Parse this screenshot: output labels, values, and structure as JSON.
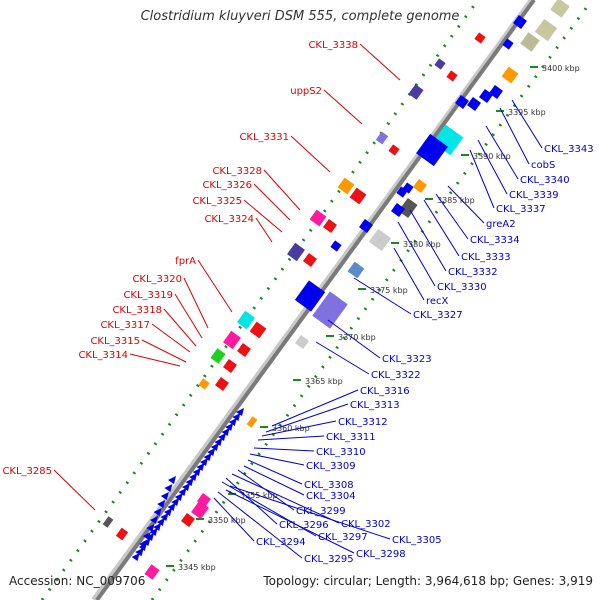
{
  "title": "Clostridium kluyveri DSM 555, complete genome",
  "footer": {
    "accession": "Accession: NC_009706",
    "summary": "Topology: circular; Length: 3,964,618 bp; Genes: 3,919"
  },
  "colors": {
    "forward_label": "#e00000",
    "reverse_label": "#0000d0",
    "backbone": "#808080",
    "tick": "#1a8a1a",
    "cds_blue": "#0000ee",
    "cds_red": "#ee1111"
  },
  "ruler_ticks": [
    "3345 kbp",
    "3350 kbp",
    "3355 kbp",
    "3360 kbp",
    "3365 kbp",
    "3370 kbp",
    "3375 kbp",
    "3380 kbp",
    "3385 kbp",
    "3390 kbp",
    "3395 kbp",
    "3400 kbp"
  ],
  "forward_genes": [
    "CKL_3338",
    "uppS2",
    "CKL_3331",
    "CKL_3328",
    "CKL_3326",
    "CKL_3325",
    "CKL_3324",
    "fprA",
    "CKL_3320",
    "CKL_3319",
    "CKL_3318",
    "CKL_3317",
    "CKL_3315",
    "CKL_3314",
    "CKL_3285"
  ],
  "reverse_genes": [
    "CKL_3343",
    "cobS",
    "CKL_3340",
    "CKL_3339",
    "CKL_3337",
    "greA2",
    "CKL_3334",
    "CKL_3333",
    "CKL_3332",
    "CKL_3330",
    "recX",
    "CKL_3327",
    "CKL_3323",
    "CKL_3322",
    "CKL_3316",
    "CKL_3313",
    "CKL_3312",
    "CKL_3311",
    "CKL_3310",
    "CKL_3309",
    "CKL_3308",
    "CKL_3304",
    "CKL_3299",
    "CKL_3302",
    "CKL_3296",
    "CKL_3297",
    "CKL_3305",
    "CKL_3294",
    "CKL_3295",
    "CKL_3298"
  ]
}
